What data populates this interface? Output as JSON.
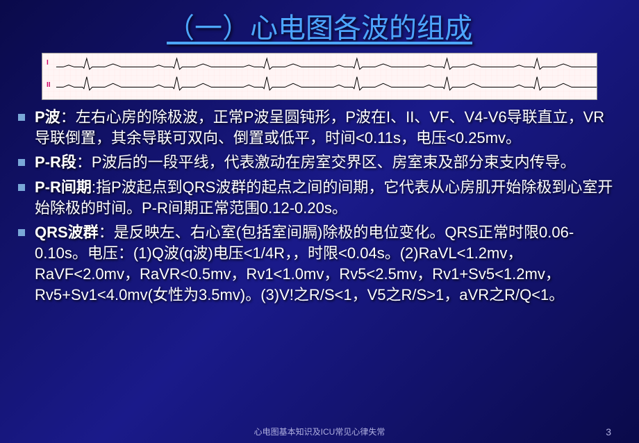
{
  "title": "（一）心电图各波的组成",
  "ecg": {
    "leads": [
      "I",
      "II"
    ],
    "background": "#fff5f5",
    "grid_color": "#ffe0e0",
    "trace_color": "#000000",
    "label_color": "#cc0066",
    "beats": 6
  },
  "bullets": [
    {
      "term": "P波",
      "sep": "：",
      "text": "左右心房的除极波，正常P波呈圆钝形，P波在I、II、VF、V4-V6导联直立，VR导联倒置，其余导联可双向、倒置或低平，时间<0.11s，电压<0.25mv。"
    },
    {
      "term": "P-R段",
      "sep": "：",
      "text": "P波后的一段平线，代表激动在房室交界区、房室束及部分束支内传导。"
    },
    {
      "term": "P-R间期",
      "sep": ":",
      "text": "指P波起点到QRS波群的起点之间的间期，它代表从心房肌开始除极到心室开始除极的时间。P-R间期正常范围0.12-0.20s。"
    },
    {
      "term": "QRS波群",
      "sep": "：",
      "text": "是反映左、右心室(包括室间膈)除极的电位变化。QRS正常时限0.06-0.10s。电压：(1)Q波(q波)电压<1/4R，，时限<0.04s。(2)RaVL<1.2mv，RaVF<2.0mv，RaVR<0.5mv，Rv1<1.0mv，Rv5<2.5mv，Rv1+Sv5<1.2mv，Rv5+Sv1<4.0mv(女性为3.5mv)。(3)V!之R/S<1，V5之R/S>1，aVR之R/Q<1。"
    }
  ],
  "footer": "心电图基本知识及ICU常见心律失常",
  "page": "3",
  "style": {
    "title_color": "#4da6ff",
    "title_fontsize": 40,
    "body_fontsize": 22,
    "bullet_color": "#7aa8d8",
    "text_color": "#ffffff",
    "background_gradient": [
      "#0a0a4a",
      "#1a1a8a",
      "#0a0a4a"
    ]
  }
}
